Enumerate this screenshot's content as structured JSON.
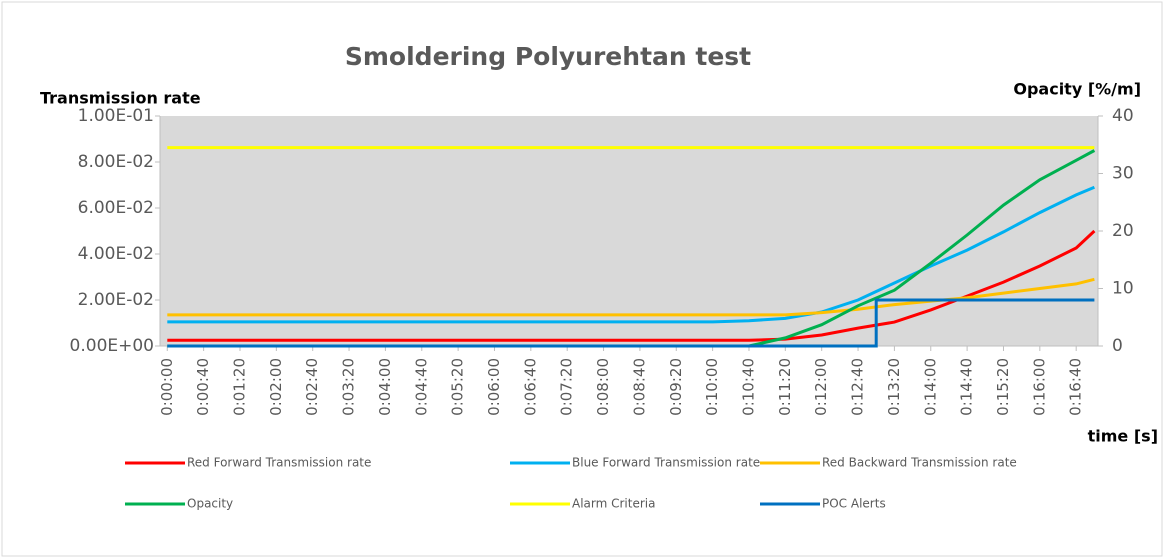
{
  "chart_data": {
    "type": "line",
    "title": "Smoldering Polyurehtan test",
    "y_label": "Transmission rate",
    "y2_label": "Opacity [%/m]",
    "x_label": "time [s]",
    "xlim": [
      -8,
      1024
    ],
    "xticks": [
      {
        "value": 0,
        "label": "0:00:00"
      },
      {
        "value": 40,
        "label": "0:00:40"
      },
      {
        "value": 80,
        "label": "0:01:20"
      },
      {
        "value": 120,
        "label": "0:02:00"
      },
      {
        "value": 160,
        "label": "0:02:40"
      },
      {
        "value": 200,
        "label": "0:03:20"
      },
      {
        "value": 240,
        "label": "0:04:00"
      },
      {
        "value": 280,
        "label": "0:04:40"
      },
      {
        "value": 320,
        "label": "0:05:20"
      },
      {
        "value": 360,
        "label": "0:06:00"
      },
      {
        "value": 400,
        "label": "0:06:40"
      },
      {
        "value": 440,
        "label": "0:07:20"
      },
      {
        "value": 480,
        "label": "0:08:00"
      },
      {
        "value": 520,
        "label": "0:08:40"
      },
      {
        "value": 560,
        "label": "0:09:20"
      },
      {
        "value": 600,
        "label": "0:10:00"
      },
      {
        "value": 640,
        "label": "0:10:40"
      },
      {
        "value": 680,
        "label": "0:11:20"
      },
      {
        "value": 720,
        "label": "0:12:00"
      },
      {
        "value": 760,
        "label": "0:12:40"
      },
      {
        "value": 800,
        "label": "0:13:20"
      },
      {
        "value": 840,
        "label": "0:14:00"
      },
      {
        "value": 880,
        "label": "0:14:40"
      },
      {
        "value": 920,
        "label": "0:15:20"
      },
      {
        "value": 960,
        "label": "0:16:00"
      },
      {
        "value": 1000,
        "label": "0:16:40"
      }
    ],
    "ylim": [
      0,
      0.1
    ],
    "yticks": [
      {
        "value": 0,
        "label": "0.00E+00"
      },
      {
        "value": 0.02,
        "label": "2.00E-02"
      },
      {
        "value": 0.04,
        "label": "4.00E-02"
      },
      {
        "value": 0.06,
        "label": "6.00E-02"
      },
      {
        "value": 0.08,
        "label": "8.00E-02"
      },
      {
        "value": 0.1,
        "label": "1.00E-01"
      }
    ],
    "y2lim": [
      0,
      40
    ],
    "y2ticks": [
      0,
      10,
      20,
      30,
      40
    ],
    "plot_background": "#d9d9d9",
    "x": [
      0,
      40,
      80,
      120,
      160,
      200,
      240,
      280,
      320,
      360,
      400,
      440,
      480,
      520,
      560,
      600,
      640,
      680,
      720,
      760,
      800,
      840,
      880,
      920,
      960,
      1000,
      1020
    ],
    "series": [
      {
        "name": "Red Forward Transmission rate",
        "color": "#ff0000",
        "values": [
          0.0025,
          0.0025,
          0.0025,
          0.0025,
          0.0025,
          0.0025,
          0.0025,
          0.0025,
          0.0025,
          0.0025,
          0.0025,
          0.0025,
          0.0025,
          0.0025,
          0.0025,
          0.0025,
          0.0025,
          0.003,
          0.0048,
          0.0078,
          0.0104,
          0.0157,
          0.0217,
          0.0278,
          0.0348,
          0.0426,
          0.05
        ]
      },
      {
        "name": "Blue Forward Transmission rate",
        "color": "#00b0f0",
        "values": [
          0.0105,
          0.0105,
          0.0105,
          0.0105,
          0.0105,
          0.0105,
          0.0105,
          0.0105,
          0.0105,
          0.0105,
          0.0105,
          0.0105,
          0.0105,
          0.0105,
          0.0105,
          0.0105,
          0.011,
          0.012,
          0.0148,
          0.02,
          0.0274,
          0.0348,
          0.0417,
          0.0496,
          0.058,
          0.0657,
          0.069
        ]
      },
      {
        "name": "Red Backward Transmission rate",
        "color": "#ffc000",
        "values": [
          0.0135,
          0.0135,
          0.0135,
          0.0135,
          0.0135,
          0.0135,
          0.0135,
          0.0135,
          0.0135,
          0.0135,
          0.0135,
          0.0135,
          0.0135,
          0.0135,
          0.0135,
          0.0135,
          0.0135,
          0.0135,
          0.0145,
          0.016,
          0.018,
          0.0195,
          0.021,
          0.023,
          0.025,
          0.027,
          0.029
        ]
      },
      {
        "name": "Opacity",
        "color": "#00b050",
        "axis": "y2",
        "values": [
          0,
          0,
          0,
          0,
          0,
          0,
          0,
          0,
          0,
          0,
          0,
          0,
          0,
          0,
          0,
          0,
          0,
          1.4,
          3.7,
          7.0,
          9.7,
          14.4,
          19.3,
          24.5,
          28.9,
          32.3,
          34.0
        ]
      },
      {
        "name": "Alarm Criteria",
        "color": "#ffff00",
        "axis": "y2",
        "values": [
          34.5,
          34.5,
          34.5,
          34.5,
          34.5,
          34.5,
          34.5,
          34.5,
          34.5,
          34.5,
          34.5,
          34.5,
          34.5,
          34.5,
          34.5,
          34.5,
          34.5,
          34.5,
          34.5,
          34.5,
          34.5,
          34.5,
          34.5,
          34.5,
          34.5,
          34.5,
          34.5
        ]
      },
      {
        "name": "POC Alerts",
        "color": "#0070c0",
        "axis": "y2",
        "x": [
          0,
          780,
          780,
          1020
        ],
        "values": [
          0,
          0,
          8,
          8
        ]
      }
    ]
  }
}
